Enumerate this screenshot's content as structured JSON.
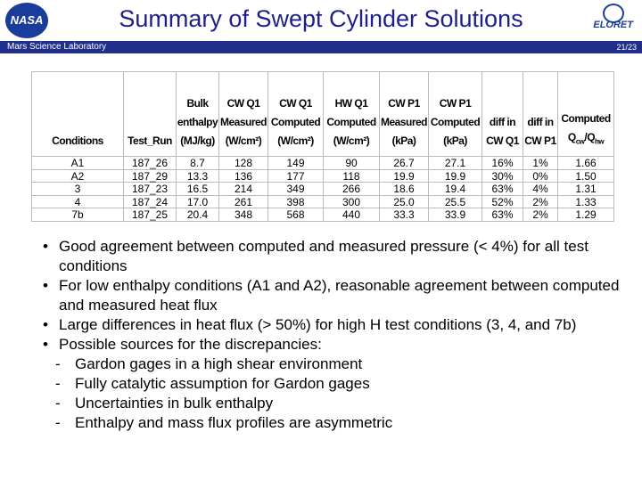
{
  "header": {
    "title": "Summary of Swept Cylinder Solutions",
    "subtitle": "Mars Science Laboratory",
    "page": "21/23",
    "logo_left": "NASA",
    "logo_right": "ELORET"
  },
  "table": {
    "headers": [
      [
        "Conditions"
      ],
      [
        "Test_Run"
      ],
      [
        "Bulk",
        "enthalpy",
        "(MJ/kg)"
      ],
      [
        "CW Q1",
        "Measured",
        "(W/cm²)"
      ],
      [
        "CW Q1",
        "Computed",
        "(W/cm²)"
      ],
      [
        "HW Q1",
        "Computed",
        "(W/cm²)"
      ],
      [
        "CW P1",
        "Measured",
        "(kPa)"
      ],
      [
        "CW P1",
        "Computed",
        "(kPa)"
      ],
      [
        "diff in",
        "CW Q1"
      ],
      [
        "diff in",
        "CW P1"
      ],
      [
        "Computed",
        [
          "Q",
          "cw",
          "/Q",
          "hw"
        ]
      ]
    ],
    "rows": [
      [
        "A1",
        "187_26",
        "8.7",
        "128",
        "149",
        "90",
        "26.7",
        "27.1",
        "16%",
        "1%",
        "1.66"
      ],
      [
        "A2",
        "187_29",
        "13.3",
        "136",
        "177",
        "118",
        "19.9",
        "19.9",
        "30%",
        "0%",
        "1.50"
      ],
      [
        "3",
        "187_23",
        "16.5",
        "214",
        "349",
        "266",
        "18.6",
        "19.4",
        "63%",
        "4%",
        "1.31"
      ],
      [
        "4",
        "187_24",
        "17.0",
        "261",
        "398",
        "300",
        "25.0",
        "25.5",
        "52%",
        "2%",
        "1.33"
      ],
      [
        "7b",
        "187_25",
        "20.4",
        "348",
        "568",
        "440",
        "33.3",
        "33.9",
        "63%",
        "2%",
        "1.29"
      ]
    ]
  },
  "bullets": [
    {
      "text": "Good agreement between computed and measured pressure (< 4%) for all test conditions"
    },
    {
      "text": "For low enthalpy conditions (A1 and A2), reasonable agreement between computed and measured heat flux"
    },
    {
      "text": "Large differences in heat flux (> 50%) for high H test conditions (3, 4, and 7b)"
    },
    {
      "text": "Possible sources for the discrepancies:",
      "sub": [
        "Gardon gages in a high shear environment",
        "Fully catalytic assumption for Gardon gages",
        "Uncertainties in bulk enthalpy",
        "Enthalpy and mass flux profiles are asymmetric"
      ]
    }
  ]
}
